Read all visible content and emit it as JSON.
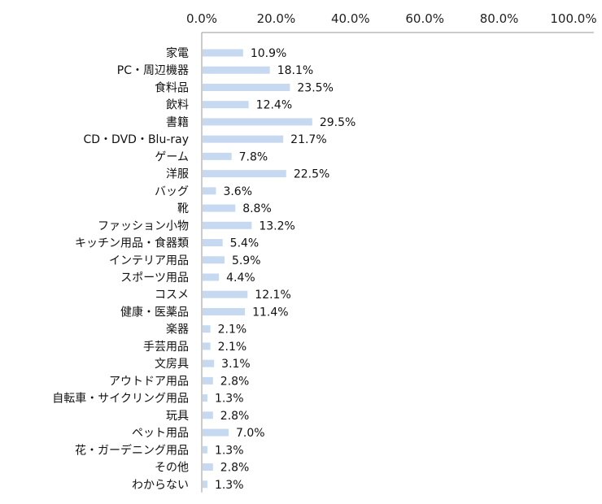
{
  "chart_data": {
    "type": "bar",
    "orientation": "horizontal",
    "categories": [
      "家電",
      "PC・周辺機器",
      "食料品",
      "飲料",
      "書籍",
      "CD・DVD・Blu-ray",
      "ゲーム",
      "洋服",
      "バッグ",
      "靴",
      "ファッション小物",
      "キッチン用品・食器類",
      "インテリア用品",
      "スポーツ用品",
      "コスメ",
      "健康・医薬品",
      "楽器",
      "手芸用品",
      "文房具",
      "アウトドア用品",
      "自転車・サイクリング用品",
      "玩具",
      "ペット用品",
      "花・ガーデニング用品",
      "その他",
      "わからない"
    ],
    "values": [
      10.9,
      18.1,
      23.5,
      12.4,
      29.5,
      21.7,
      7.8,
      22.5,
      3.6,
      8.8,
      13.2,
      5.4,
      5.9,
      4.4,
      12.1,
      11.4,
      2.1,
      2.1,
      3.1,
      2.8,
      1.3,
      2.8,
      7.0,
      1.3,
      2.8,
      1.3
    ],
    "value_labels": [
      "10.9%",
      "18.1%",
      "23.5%",
      "12.4%",
      "29.5%",
      "21.7%",
      "7.8%",
      "22.5%",
      "3.6%",
      "8.8%",
      "13.2%",
      "5.4%",
      "5.9%",
      "4.4%",
      "12.1%",
      "11.4%",
      "2.1%",
      "2.1%",
      "3.1%",
      "2.8%",
      "1.3%",
      "2.8%",
      "7.0%",
      "1.3%",
      "2.8%",
      "1.3%"
    ],
    "xlim": [
      0,
      100
    ],
    "x_ticks": [
      0,
      20,
      40,
      60,
      80,
      100
    ],
    "x_tick_labels": [
      "0.0%",
      "20.0%",
      "40.0%",
      "60.0%",
      "80.0%",
      "100.0%"
    ],
    "x_axis_position": "top",
    "grid": false,
    "bar_color": "#c6d9f1",
    "axis_color": "#999999"
  }
}
